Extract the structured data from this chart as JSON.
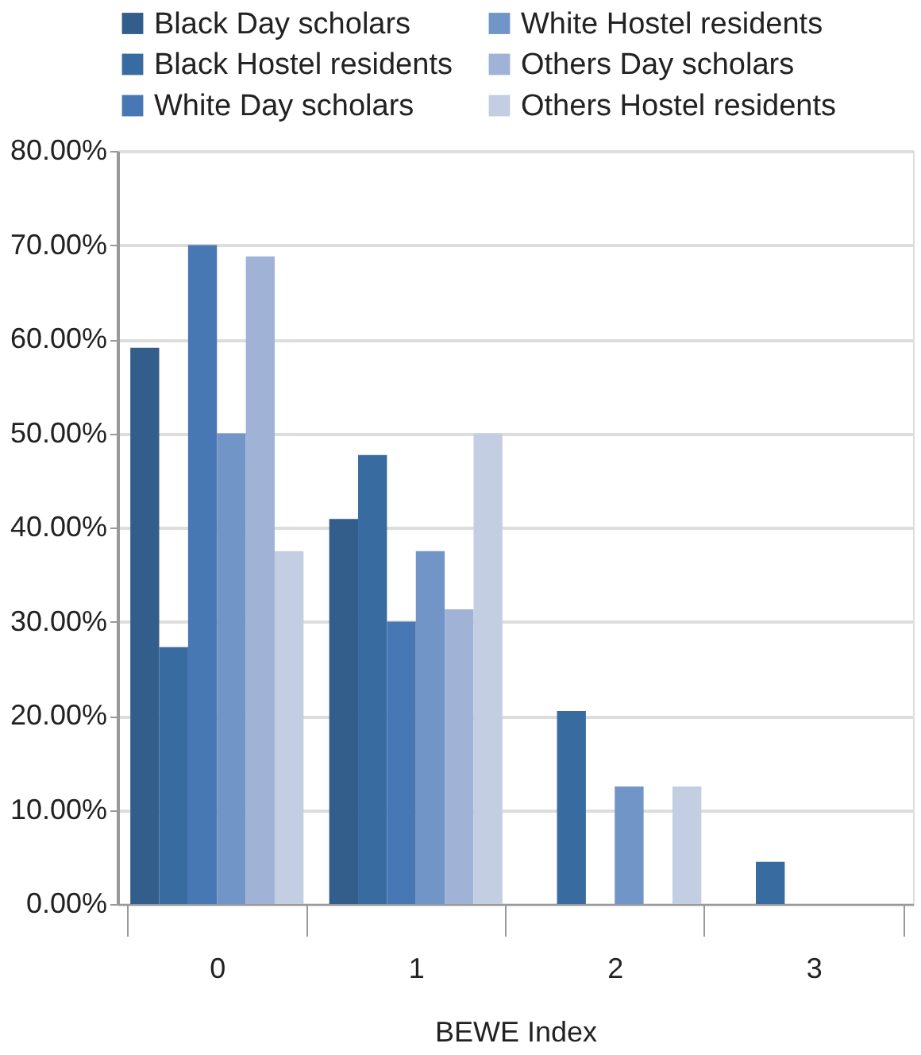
{
  "chart_data": {
    "type": "bar",
    "xlabel": "BEWE Index",
    "categories": [
      "0",
      "1",
      "2",
      "3"
    ],
    "series": [
      {
        "name": "Black Day scholars",
        "color": "#335d8a",
        "values": [
          59.1,
          40.9,
          0,
          0
        ]
      },
      {
        "name": "Black Hostel residents",
        "color": "#386ca1",
        "values": [
          27.3,
          47.7,
          20.5,
          4.5
        ]
      },
      {
        "name": "White Day scholars",
        "color": "#4878b4",
        "values": [
          70.0,
          30.0,
          0,
          0
        ]
      },
      {
        "name": "White Hostel residents",
        "color": "#7295c7",
        "values": [
          50.0,
          37.5,
          12.5,
          0
        ]
      },
      {
        "name": "Others Day scholars",
        "color": "#a0b3d6",
        "values": [
          68.8,
          31.3,
          0,
          0
        ]
      },
      {
        "name": "Others Hostel residents",
        "color": "#c3cee3",
        "values": [
          37.5,
          50.0,
          12.5,
          0
        ]
      }
    ],
    "ylim": [
      0,
      80
    ],
    "yticks": [
      {
        "value": 0,
        "label": "0.00%"
      },
      {
        "value": 10,
        "label": "10.00%"
      },
      {
        "value": 20,
        "label": "20.00%"
      },
      {
        "value": 30,
        "label": "30.00%"
      },
      {
        "value": 40,
        "label": "40.00%"
      },
      {
        "value": 50,
        "label": "50.00%"
      },
      {
        "value": 60,
        "label": "60.00%"
      },
      {
        "value": 70,
        "label": "70.00%"
      },
      {
        "value": 80,
        "label": "80.00%"
      }
    ],
    "grid": "y",
    "legend": "top"
  }
}
